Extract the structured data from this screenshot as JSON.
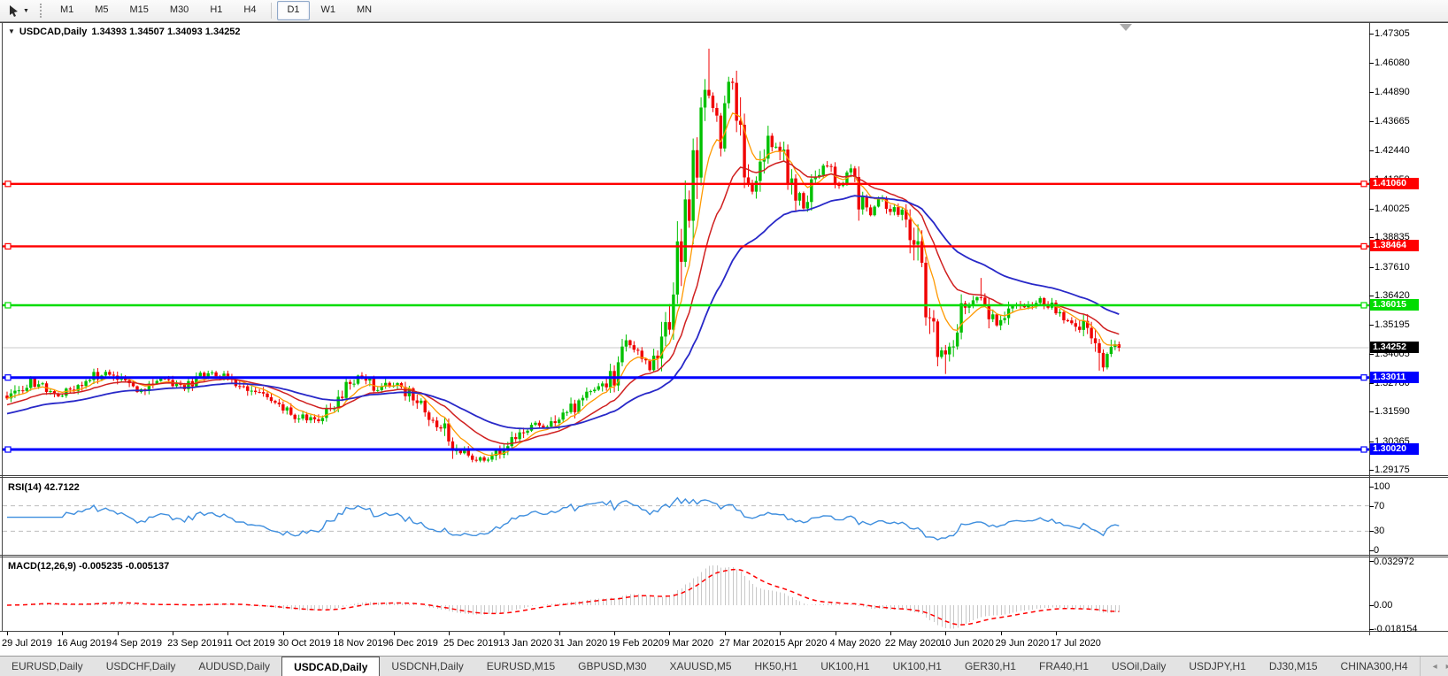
{
  "toolbar": {
    "timeframes": [
      "M1",
      "M5",
      "M15",
      "M30",
      "H1",
      "H4",
      "D1",
      "W1",
      "MN"
    ],
    "selected_timeframe": "D1",
    "tool_icon": "pointer-tool",
    "caret_glyph": "▼"
  },
  "chart": {
    "title": {
      "symbol": "USDCAD,Daily",
      "ohlc_text": "1.34393 1.34507 1.34093 1.34252",
      "caret_glyph": "▼"
    },
    "price_axis_ticks": [
      "1.47305",
      "1.46080",
      "1.44890",
      "1.43665",
      "1.42440",
      "1.41250",
      "1.40025",
      "1.38835",
      "1.37610",
      "1.36420",
      "1.35195",
      "1.34005",
      "1.32780",
      "1.31590",
      "1.30365",
      "1.29175"
    ],
    "current_price": {
      "label": "1.34252",
      "price": 1.34252,
      "chip_color": "#000000",
      "line_color": "#c8c8c8"
    },
    "levels": [
      {
        "label": "1.41060",
        "price": 1.4106,
        "color": "#ff0000",
        "width": 2.4
      },
      {
        "label": "1.38464",
        "price": 1.38464,
        "color": "#ff0000",
        "width": 2.4
      },
      {
        "label": "1.36015",
        "price": 1.36015,
        "color": "#00dc00",
        "width": 2.6
      },
      {
        "label": "1.33011",
        "price": 1.33011,
        "color": "#0000ff",
        "width": 3
      },
      {
        "label": "1.30020",
        "price": 1.3002,
        "color": "#0000ff",
        "width": 3
      }
    ],
    "date_axis": [
      "29 Jul 2019",
      "16 Aug 2019",
      "4 Sep 2019",
      "23 Sep 2019",
      "11 Oct 2019",
      "30 Oct 2019",
      "18 Nov 2019",
      "6 Dec 2019",
      "25 Dec 2019",
      "13 Jan 2020",
      "31 Jan 2020",
      "19 Feb 2020",
      "9 Mar 2020",
      "27 Mar 2020",
      "15 Apr 2020",
      "4 May 2020",
      "22 May 2020",
      "10 Jun 2020",
      "29 Jun 2020",
      "17 Jul 2020"
    ]
  },
  "indicators": {
    "rsi": {
      "label": "RSI(14) 42.7122",
      "period": 14,
      "value": 42.7122,
      "axis": [
        {
          "label": "100",
          "value": 100
        },
        {
          "label": "70",
          "value": 70
        },
        {
          "label": "30",
          "value": 30
        },
        {
          "label": "0",
          "value": 0
        }
      ],
      "dashed_levels": [
        70,
        30
      ],
      "line_color": "#3e8ede"
    },
    "macd": {
      "label": "MACD(12,26,9) -0.005235 -0.005137",
      "macd_value": -0.005235,
      "signal_value": -0.005137,
      "axis": [
        {
          "label": "0.032972",
          "value": 0.032972
        },
        {
          "label": "0.00",
          "value": 0
        },
        {
          "label": "-0.018154",
          "value": -0.018154
        }
      ],
      "range": [
        -0.018154,
        0.032972
      ],
      "histogram_color": "#c8c8c8",
      "signal_color": "#ff0000"
    }
  },
  "chart_data": {
    "type": "candlestick",
    "symbol": "USDCAD",
    "timeframe": "Daily",
    "title": "USDCAD,Daily",
    "visible_range": {
      "price_min": 1.29175,
      "price_max": 1.47305,
      "date_start": "29 Jul 2019",
      "date_end": "17 Jul 2020"
    },
    "candle_count": 283,
    "last_candle": {
      "open": 1.34393,
      "high": 1.34507,
      "low": 1.34093,
      "close": 1.34252
    },
    "close_anchors": [
      [
        0,
        1.321
      ],
      [
        6,
        1.3285
      ],
      [
        12,
        1.3232
      ],
      [
        19,
        1.3272
      ],
      [
        25,
        1.3335
      ],
      [
        30,
        1.3268
      ],
      [
        34,
        1.3246
      ],
      [
        39,
        1.33
      ],
      [
        45,
        1.3257
      ],
      [
        51,
        1.3318
      ],
      [
        57,
        1.3292
      ],
      [
        63,
        1.3232
      ],
      [
        68,
        1.3178
      ],
      [
        74,
        1.3138
      ],
      [
        78,
        1.3122
      ],
      [
        82,
        1.318
      ],
      [
        87,
        1.3288
      ],
      [
        90,
        1.3304
      ],
      [
        94,
        1.3252
      ],
      [
        98,
        1.3282
      ],
      [
        102,
        1.3232
      ],
      [
        106,
        1.3172
      ],
      [
        110,
        1.3102
      ],
      [
        114,
        1.2998
      ],
      [
        117,
        1.2968
      ],
      [
        121,
        1.2958
      ],
      [
        125,
        1.2996
      ],
      [
        129,
        1.3062
      ],
      [
        133,
        1.3106
      ],
      [
        137,
        1.3082
      ],
      [
        141,
        1.314
      ],
      [
        146,
        1.3216
      ],
      [
        151,
        1.3266
      ],
      [
        154,
        1.3308
      ],
      [
        157,
        1.3448
      ],
      [
        160,
        1.3392
      ],
      [
        163,
        1.3342
      ],
      [
        166,
        1.3432
      ],
      [
        169,
        1.3652
      ],
      [
        172,
        1.3962
      ],
      [
        175,
        1.4222
      ],
      [
        177,
        1.4502
      ],
      [
        179,
        1.4448
      ],
      [
        181,
        1.4282
      ],
      [
        183,
        1.4548
      ],
      [
        185,
        1.4428
      ],
      [
        187,
        1.4182
      ],
      [
        189,
        1.4072
      ],
      [
        191,
        1.4152
      ],
      [
        193,
        1.4262
      ],
      [
        195,
        1.4282
      ],
      [
        197,
        1.4192
      ],
      [
        200,
        1.4082
      ],
      [
        202,
        1.4022
      ],
      [
        205,
        1.4152
      ],
      [
        208,
        1.4192
      ],
      [
        211,
        1.4102
      ],
      [
        214,
        1.4162
      ],
      [
        216,
        1.4052
      ],
      [
        219,
        1.3992
      ],
      [
        221,
        1.4052
      ],
      [
        224,
        1.4002
      ],
      [
        226,
        1.3992
      ],
      [
        228,
        1.3942
      ],
      [
        230,
        1.3852
      ],
      [
        232,
        1.3722
      ],
      [
        234,
        1.3532
      ],
      [
        236,
        1.3432
      ],
      [
        238,
        1.3392
      ],
      [
        241,
        1.3542
      ],
      [
        243,
        1.3602
      ],
      [
        245,
        1.3632
      ],
      [
        247,
        1.3652
      ],
      [
        249,
        1.3572
      ],
      [
        251,
        1.3512
      ],
      [
        253,
        1.3562
      ],
      [
        255,
        1.3612
      ],
      [
        257,
        1.3602
      ],
      [
        259,
        1.3582
      ],
      [
        261,
        1.3632
      ],
      [
        263,
        1.3612
      ],
      [
        265,
        1.3592
      ],
      [
        267,
        1.3572
      ],
      [
        269,
        1.3552
      ],
      [
        271,
        1.3532
      ],
      [
        273,
        1.3502
      ],
      [
        275,
        1.3452
      ],
      [
        277,
        1.3402
      ],
      [
        278,
        1.3348
      ],
      [
        280,
        1.3462
      ],
      [
        282,
        1.34252
      ]
    ],
    "extremes": [
      {
        "index": 119,
        "low": 1.2949
      },
      {
        "index": 178,
        "high": 1.4668
      },
      {
        "index": 238,
        "low": 1.3316
      },
      {
        "index": 247,
        "high": 1.3715
      },
      {
        "index": 277,
        "low": 1.333
      }
    ],
    "up_color": "#00c000",
    "down_color": "#f00000",
    "moving_averages": [
      {
        "name": "fast",
        "period": 8,
        "color": "#ff9900",
        "width": 1.3,
        "seed": null
      },
      {
        "name": "medium",
        "period": 20,
        "color": "#d02020",
        "width": 1.5,
        "seed": 1.3185
      },
      {
        "name": "slow",
        "period": 45,
        "color": "#2828c8",
        "width": 1.8,
        "seed": 1.3148
      }
    ]
  },
  "tabs": {
    "items": [
      {
        "label": "EURUSD,Daily",
        "active": false
      },
      {
        "label": "USDCHF,Daily",
        "active": false
      },
      {
        "label": "AUDUSD,Daily",
        "active": false
      },
      {
        "label": "USDCAD,Daily",
        "active": true
      },
      {
        "label": "USDCNH,Daily",
        "active": false
      },
      {
        "label": "EURUSD,M15",
        "active": false
      },
      {
        "label": "GBPUSD,M30",
        "active": false
      },
      {
        "label": "XAUUSD,M5",
        "active": false
      },
      {
        "label": "HK50,H1",
        "active": false
      },
      {
        "label": "UK100,H1",
        "active": false
      },
      {
        "label": "UK100,H1",
        "active": false
      },
      {
        "label": "GER30,H1",
        "active": false
      },
      {
        "label": "FRA40,H1",
        "active": false
      },
      {
        "label": "USOil,Daily",
        "active": false
      },
      {
        "label": "USDJPY,H1",
        "active": false
      },
      {
        "label": "DJ30,M15",
        "active": false
      },
      {
        "label": "CHINA300,H4",
        "active": false
      }
    ],
    "scroll_left_glyph": "◂",
    "scroll_right_glyph": "▸"
  }
}
